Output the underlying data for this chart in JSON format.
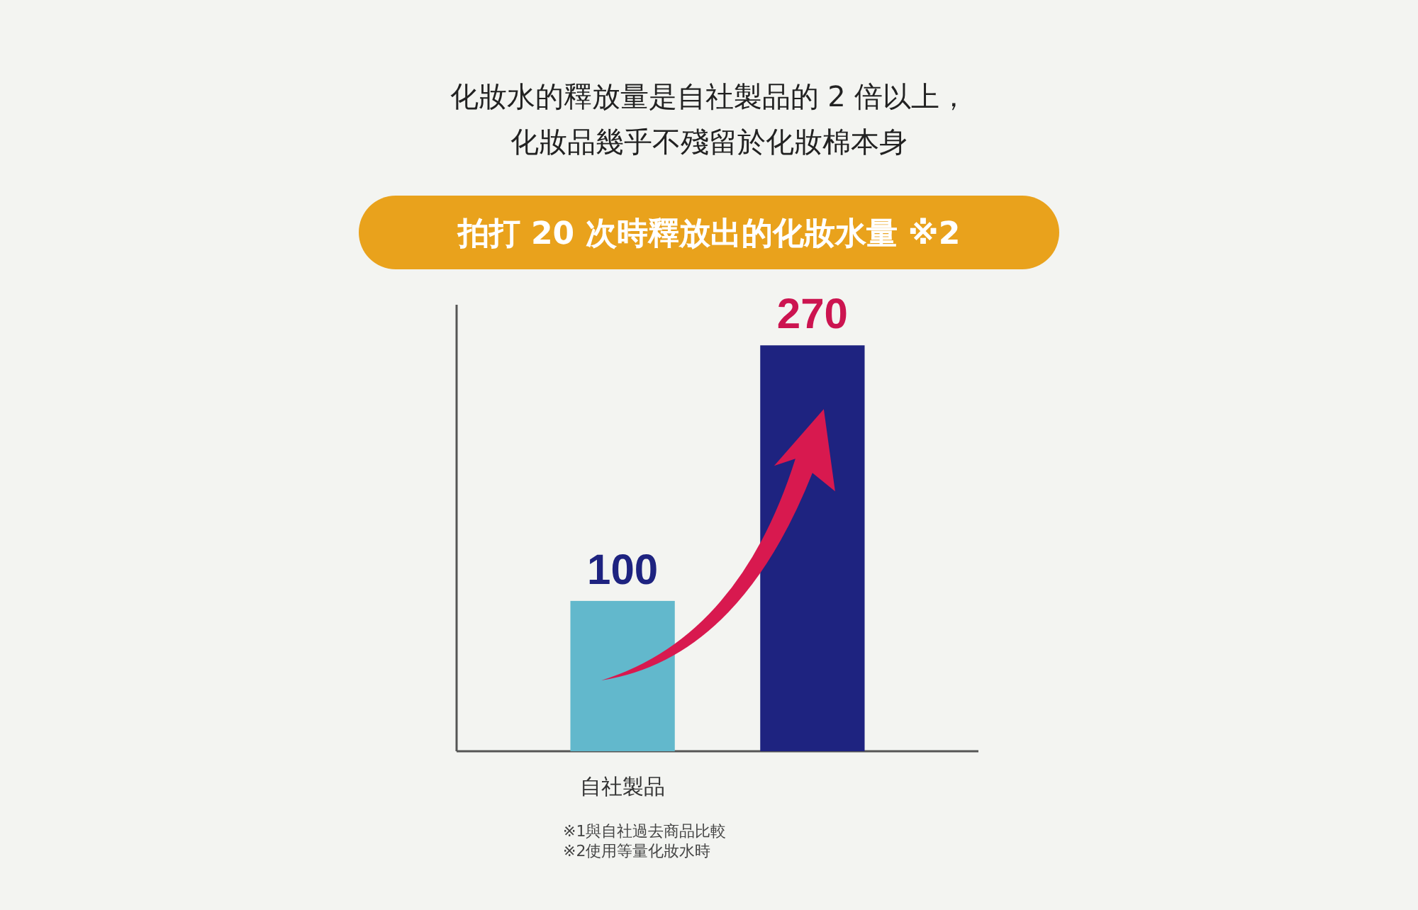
{
  "chart_data": {
    "type": "bar",
    "title": "化妝水的釋放量是自社製品的 2 倍以上，化妝品幾乎不殘留於化妝棉本身",
    "subtitle": "拍打 20 次時釋放出的化妝水量 ※2",
    "categories": [
      "自社製品",
      null
    ],
    "values": [
      100,
      270
    ],
    "colors": [
      "#62b8cc",
      "#1e2380"
    ],
    "data_labels": true,
    "annotations": [
      "※1與自社過去商品比較",
      "※2使用等量化妝水時"
    ]
  }
}
